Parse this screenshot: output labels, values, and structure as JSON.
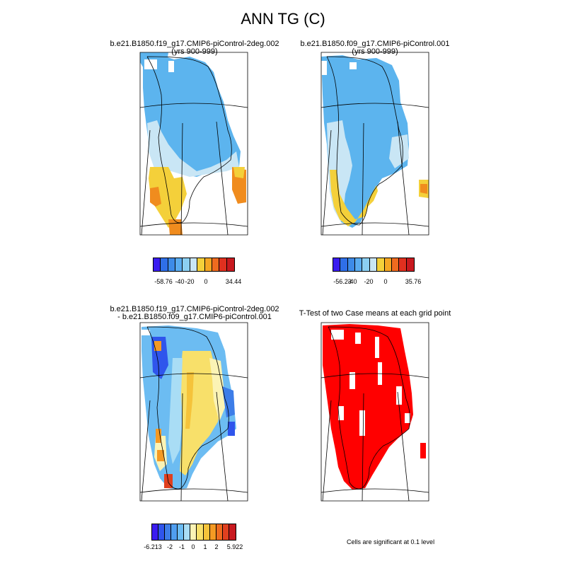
{
  "title": "ANN TG (C)",
  "panels": [
    {
      "title_line1": "b.e21.B1850.f19_g17.CMIP6-piControl-2deg.002",
      "title_line2": "(yrs 900-999)",
      "colorbar": {
        "colors": [
          "#3a1cf0",
          "#2f6fe8",
          "#3d8be8",
          "#5aacf0",
          "#8ccff2",
          "#c9e6f5",
          "#f4d03a",
          "#f5a623",
          "#ef6b1f",
          "#e0301f",
          "#c8191f"
        ],
        "labels": [
          "-58.76",
          "-40",
          "-20",
          "0",
          "34.44"
        ]
      }
    },
    {
      "title_line1": "b.e21.B1850.f09_g17.CMIP6-piControl.001",
      "title_line2": "(yrs 900-999)",
      "colorbar": {
        "colors": [
          "#3a1cf0",
          "#2f6fe8",
          "#3d8be8",
          "#5aacf0",
          "#8ccff2",
          "#c9e6f5",
          "#f4d03a",
          "#f5a623",
          "#ef6b1f",
          "#e0301f",
          "#c8191f"
        ],
        "labels": [
          "-56.23",
          "-40",
          "-20",
          "0",
          "35.76"
        ]
      }
    },
    {
      "title_line1": "b.e21.B1850.f19_g17.CMIP6-piControl-2deg.002",
      "title_line2": "- b.e21.B1850.f09_g17.CMIP6-piControl.001",
      "colorbar": {
        "colors": [
          "#3a1cf0",
          "#2f55ec",
          "#3d7de8",
          "#4f9ef0",
          "#6cbcf2",
          "#a9ddf5",
          "#fbf3b5",
          "#f8e06a",
          "#f5c33a",
          "#f59a23",
          "#ef6b1f",
          "#e0401f",
          "#c8191f"
        ],
        "labels": [
          "-6.213",
          "-2",
          "-1",
          "0",
          "1",
          "2",
          "5.922"
        ]
      }
    },
    {
      "title_line1": "T-Test of two Case means at each grid point",
      "note": "Cells are significant at 0.1 level"
    }
  ]
}
